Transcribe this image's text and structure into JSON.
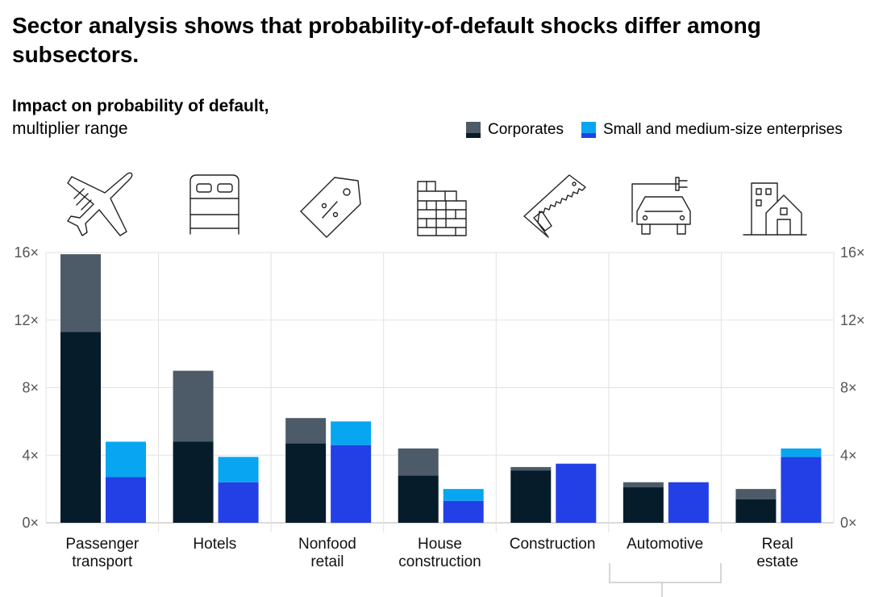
{
  "title": "Sector analysis shows that probability-of-default shocks differ among subsectors.",
  "subtitle_bold": "Impact on probability of default,",
  "subtitle_light": "multiplier range",
  "legend": [
    {
      "name": "Corporates",
      "top_color": "#4d5b68",
      "bottom_color": "#061c2b"
    },
    {
      "name": "Small and medium-size enterprises",
      "top_color": "#08a6f0",
      "bottom_color": "#2340e6"
    }
  ],
  "icons": [
    "airplane-icon",
    "bed-icon",
    "price-tag-icon",
    "brick-wall-icon",
    "saw-icon",
    "electric-car-icon",
    "buildings-icon"
  ],
  "chart_data": {
    "type": "bar",
    "categories": [
      [
        "Passenger",
        "transport"
      ],
      [
        "Hotels"
      ],
      [
        "Nonfood",
        "retail"
      ],
      [
        "House",
        "construction"
      ],
      [
        "Construction"
      ],
      [
        "Automotive"
      ],
      [
        "Real",
        "estate"
      ]
    ],
    "series": [
      {
        "name": "Corporates",
        "low": [
          11.3,
          4.8,
          4.7,
          2.8,
          3.1,
          2.1,
          1.4
        ],
        "high": [
          15.9,
          9.0,
          6.2,
          4.4,
          3.3,
          2.4,
          2.0
        ]
      },
      {
        "name": "Small and medium-size enterprises",
        "low": [
          2.7,
          2.4,
          4.6,
          1.3,
          3.5,
          2.4,
          3.9
        ],
        "high": [
          4.8,
          3.9,
          6.0,
          2.0,
          3.5,
          2.4,
          4.4
        ]
      }
    ],
    "yticks": [
      "0×",
      "4×",
      "8×",
      "12×",
      "16×"
    ],
    "ylim": [
      0,
      16
    ],
    "grid": true
  }
}
